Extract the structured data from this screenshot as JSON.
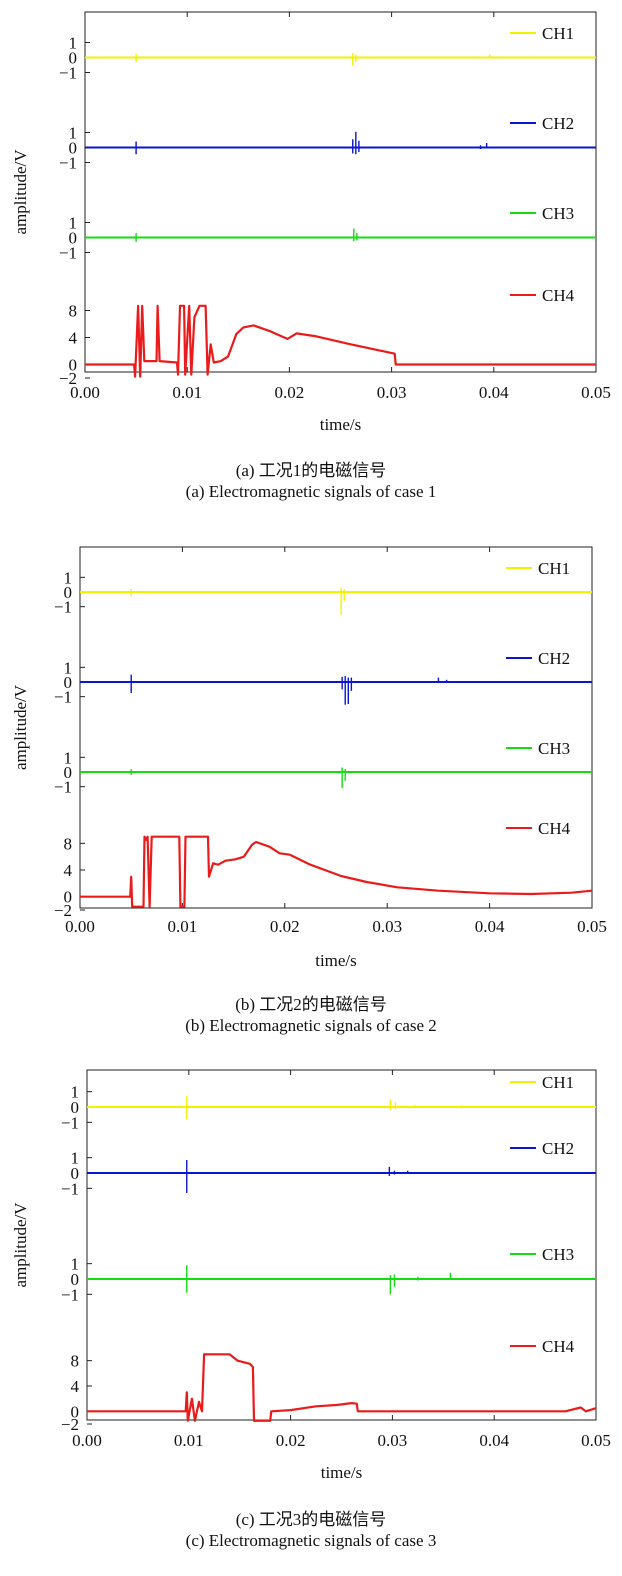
{
  "chart_data": [
    {
      "type": "line",
      "caption_cn": "(a) 工况1的电磁信号",
      "caption_en": "(a) Electromagnetic signals of case 1",
      "xlabel": "time/s",
      "ylabel": "amplitude/V",
      "xlim": [
        0,
        0.05
      ],
      "xticks": [
        "0.00",
        "0.01",
        "0.02",
        "0.03",
        "0.04",
        "0.05"
      ],
      "channels": [
        {
          "name": "CH1",
          "color": "#f2f200",
          "yticks": [
            "1",
            "0",
            "−1"
          ],
          "ylim": [
            -1.5,
            1.5
          ],
          "baseline": [
            [
              0,
              0
            ],
            [
              0.05,
              0
            ]
          ],
          "spikes": [
            [
              0.005,
              0.25,
              -0.3
            ],
            [
              0.0262,
              0.3,
              -0.55
            ],
            [
              0.0265,
              0.2,
              -0.3
            ],
            [
              0.0396,
              0.2,
              0
            ]
          ]
        },
        {
          "name": "CH2",
          "color": "#0a14d2",
          "yticks": [
            "1",
            "0",
            "−1"
          ],
          "ylim": [
            -1.5,
            1.5
          ],
          "baseline": [
            [
              0,
              0
            ],
            [
              0.05,
              0
            ]
          ],
          "spikes": [
            [
              0.005,
              0.4,
              -0.45
            ],
            [
              0.0262,
              0.55,
              -0.4
            ],
            [
              0.0265,
              1.05,
              -0.45
            ],
            [
              0.0268,
              0.45,
              -0.3
            ],
            [
              0.0387,
              0.15,
              -0.1
            ],
            [
              0.0393,
              0.3,
              0
            ]
          ]
        },
        {
          "name": "CH3",
          "color": "#12de12",
          "yticks": [
            "1",
            "0",
            "−1"
          ],
          "ylim": [
            -1.5,
            1.5
          ],
          "baseline": [
            [
              0,
              0
            ],
            [
              0.05,
              0
            ]
          ],
          "spikes": [
            [
              0.005,
              0.3,
              -0.3
            ],
            [
              0.0263,
              0.6,
              -0.25
            ],
            [
              0.0266,
              0.3,
              -0.2
            ]
          ]
        },
        {
          "name": "CH4",
          "color": "#ec1b1b",
          "yticks": [
            "8",
            "4",
            "0",
            "−2"
          ],
          "ylim": [
            -2,
            10
          ],
          "baseline": [
            [
              0,
              0
            ],
            [
              0.0048,
              0
            ],
            [
              0.0049,
              -1.8
            ],
            [
              0.0052,
              8.7
            ],
            [
              0.0054,
              -1.8
            ],
            [
              0.0056,
              8.7
            ],
            [
              0.0058,
              0.5
            ],
            [
              0.007,
              0.5
            ],
            [
              0.0071,
              8.7
            ],
            [
              0.0073,
              0.5
            ],
            [
              0.009,
              0.3
            ],
            [
              0.0091,
              -1.5
            ],
            [
              0.0093,
              8.7
            ],
            [
              0.0097,
              8.7
            ],
            [
              0.0098,
              -1.5
            ],
            [
              0.0102,
              8.7
            ],
            [
              0.0104,
              -1.5
            ],
            [
              0.0107,
              7
            ],
            [
              0.0112,
              8.7
            ],
            [
              0.0118,
              8.7
            ],
            [
              0.012,
              -1.5
            ],
            [
              0.0123,
              3
            ],
            [
              0.0126,
              0.3
            ],
            [
              0.0133,
              0.5
            ],
            [
              0.014,
              1.2
            ],
            [
              0.0148,
              4.5
            ],
            [
              0.0155,
              5.5
            ],
            [
              0.0165,
              5.8
            ],
            [
              0.018,
              5
            ],
            [
              0.0198,
              3.8
            ],
            [
              0.0207,
              4.6
            ],
            [
              0.0225,
              4.2
            ],
            [
              0.026,
              3
            ],
            [
              0.0303,
              1.6
            ],
            [
              0.0304,
              0
            ],
            [
              0.05,
              0
            ]
          ],
          "spikes": []
        }
      ]
    },
    {
      "type": "line",
      "caption_cn": "(b) 工况2的电磁信号",
      "caption_en": "(b) Electromagnetic signals of case 2",
      "xlabel": "time/s",
      "ylabel": "amplitude/V",
      "xlim": [
        0,
        0.05
      ],
      "xticks": [
        "0.00",
        "0.01",
        "0.02",
        "0.03",
        "0.04",
        "0.05"
      ],
      "channels": [
        {
          "name": "CH1",
          "color": "#f2f200",
          "yticks": [
            "1",
            "0",
            "−1"
          ],
          "ylim": [
            -1.5,
            1.5
          ],
          "baseline": [
            [
              0,
              0
            ],
            [
              0.05,
              0
            ]
          ],
          "spikes": [
            [
              0.005,
              0.2,
              -0.3
            ],
            [
              0.0255,
              0.3,
              -1.55
            ],
            [
              0.0258,
              0.2,
              -0.6
            ]
          ]
        },
        {
          "name": "CH2",
          "color": "#0a14d2",
          "yticks": [
            "1",
            "0",
            "−1"
          ],
          "ylim": [
            -1.5,
            1.5
          ],
          "baseline": [
            [
              0,
              0
            ],
            [
              0.05,
              0
            ]
          ],
          "spikes": [
            [
              0.005,
              0.5,
              -0.75
            ],
            [
              0.0256,
              0.35,
              -0.5
            ],
            [
              0.0259,
              0.4,
              -1.55
            ],
            [
              0.0262,
              0.3,
              -1.5
            ],
            [
              0.0265,
              0.3,
              -0.6
            ],
            [
              0.035,
              0.3,
              0
            ],
            [
              0.0358,
              0.15,
              0
            ]
          ]
        },
        {
          "name": "CH3",
          "color": "#12de12",
          "yticks": [
            "1",
            "0",
            "−1"
          ],
          "ylim": [
            -1.5,
            1.5
          ],
          "baseline": [
            [
              0,
              0
            ],
            [
              0.05,
              0
            ]
          ],
          "spikes": [
            [
              0.005,
              0.2,
              -0.2
            ],
            [
              0.0256,
              0.3,
              -1.1
            ],
            [
              0.0259,
              0.2,
              -0.6
            ]
          ]
        },
        {
          "name": "CH4",
          "color": "#ec1b1b",
          "yticks": [
            "8",
            "4",
            "0",
            "−2"
          ],
          "ylim": [
            -2,
            10
          ],
          "baseline": [
            [
              0,
              0
            ],
            [
              0.0049,
              0
            ],
            [
              0.005,
              3
            ],
            [
              0.0051,
              -1.5
            ],
            [
              0.0062,
              -1.5
            ],
            [
              0.0063,
              9
            ],
            [
              0.0065,
              8.5
            ],
            [
              0.0066,
              9
            ],
            [
              0.0068,
              -1.5
            ],
            [
              0.007,
              9
            ],
            [
              0.0097,
              9
            ],
            [
              0.0098,
              -1.5
            ],
            [
              0.0102,
              -1.5
            ],
            [
              0.0103,
              9
            ],
            [
              0.0125,
              9
            ],
            [
              0.0126,
              3
            ],
            [
              0.013,
              5
            ],
            [
              0.0135,
              4.8
            ],
            [
              0.0142,
              5.4
            ],
            [
              0.0152,
              5.6
            ],
            [
              0.016,
              6
            ],
            [
              0.0168,
              7.8
            ],
            [
              0.0172,
              8.2
            ],
            [
              0.0185,
              7.5
            ],
            [
              0.0195,
              6.5
            ],
            [
              0.0205,
              6.3
            ],
            [
              0.0225,
              4.8
            ],
            [
              0.0255,
              3.1
            ],
            [
              0.028,
              2.2
            ],
            [
              0.031,
              1.4
            ],
            [
              0.035,
              0.9
            ],
            [
              0.04,
              0.5
            ],
            [
              0.044,
              0.4
            ],
            [
              0.048,
              0.6
            ],
            [
              0.05,
              0.9
            ]
          ],
          "spikes": []
        }
      ]
    },
    {
      "type": "line",
      "caption_cn": "(c) 工况3的电磁信号",
      "caption_en": "(c) Electromagnetic signals of case 3",
      "xlabel": "time/s",
      "ylabel": "amplitude/V",
      "xlim": [
        0,
        0.05
      ],
      "xticks": [
        "0.00",
        "0.01",
        "0.02",
        "0.03",
        "0.04",
        "0.05"
      ],
      "channels": [
        {
          "name": "CH1",
          "color": "#f2f200",
          "yticks": [
            "1",
            "0",
            "−1"
          ],
          "ylim": [
            -1.5,
            1.5
          ],
          "baseline": [
            [
              0,
              0
            ],
            [
              0.05,
              0
            ]
          ],
          "spikes": [
            [
              0.0098,
              0.7,
              -0.8
            ],
            [
              0.0298,
              0.5,
              -0.2
            ],
            [
              0.0303,
              0.3,
              -0.15
            ],
            [
              0.0322,
              0.15,
              0
            ],
            [
              0.0368,
              0.1,
              -0.1
            ]
          ]
        },
        {
          "name": "CH2",
          "color": "#0a14d2",
          "yticks": [
            "1",
            "0",
            "−1"
          ],
          "ylim": [
            -1.5,
            1.5
          ],
          "baseline": [
            [
              0,
              0
            ],
            [
              0.05,
              0
            ]
          ],
          "spikes": [
            [
              0.0098,
              0.85,
              -1.3
            ],
            [
              0.0297,
              0.4,
              -0.2
            ],
            [
              0.0302,
              0.15,
              -0.1
            ],
            [
              0.0315,
              0.15,
              0
            ]
          ]
        },
        {
          "name": "CH3",
          "color": "#12de12",
          "yticks": [
            "1",
            "0",
            "−1"
          ],
          "ylim": [
            -1.5,
            1.5
          ],
          "baseline": [
            [
              0,
              0
            ],
            [
              0.05,
              0
            ]
          ],
          "spikes": [
            [
              0.0098,
              0.9,
              -0.9
            ],
            [
              0.0298,
              0.25,
              -1.0
            ],
            [
              0.0302,
              0.3,
              -0.5
            ],
            [
              0.0325,
              0.15,
              -0.1
            ],
            [
              0.0357,
              0.4,
              0
            ]
          ]
        },
        {
          "name": "CH4",
          "color": "#ec1b1b",
          "yticks": [
            "8",
            "4",
            "0",
            "−2"
          ],
          "ylim": [
            -2,
            10
          ],
          "baseline": [
            [
              0,
              0
            ],
            [
              0.0097,
              0
            ],
            [
              0.0098,
              3
            ],
            [
              0.0099,
              -1.5
            ],
            [
              0.0103,
              2
            ],
            [
              0.0106,
              -1.5
            ],
            [
              0.011,
              1.5
            ],
            [
              0.0113,
              0
            ],
            [
              0.0115,
              9
            ],
            [
              0.014,
              9
            ],
            [
              0.0148,
              8
            ],
            [
              0.016,
              7.5
            ],
            [
              0.0163,
              7
            ],
            [
              0.0164,
              -1.5
            ],
            [
              0.018,
              -1.5
            ],
            [
              0.0181,
              0
            ],
            [
              0.02,
              0.2
            ],
            [
              0.0225,
              0.8
            ],
            [
              0.0245,
              1
            ],
            [
              0.026,
              1.3
            ],
            [
              0.0265,
              1.2
            ],
            [
              0.0266,
              0
            ],
            [
              0.047,
              0
            ],
            [
              0.0485,
              0.6
            ],
            [
              0.049,
              0
            ],
            [
              0.05,
              0.5
            ]
          ],
          "spikes": []
        }
      ]
    }
  ]
}
